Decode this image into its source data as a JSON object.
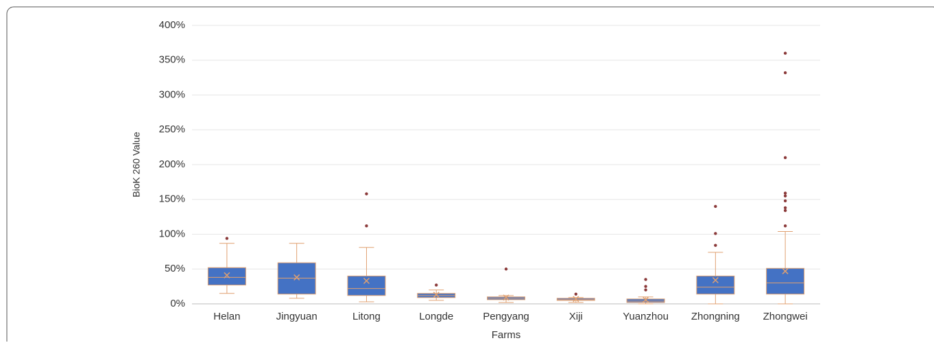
{
  "chart_data": {
    "type": "box",
    "x_label": "Farms",
    "y_label": "BioK 260 Value",
    "categories": [
      "Helan",
      "Jingyuan",
      "Litong",
      "Longde",
      "Pengyang",
      "Xiji",
      "Yuanzhou",
      "Zhongning",
      "Zhongwei"
    ],
    "min": [
      15,
      8,
      3,
      5,
      2,
      2,
      0,
      0,
      0
    ],
    "q1": [
      27,
      14,
      12,
      9,
      6,
      5,
      2,
      14,
      14
    ],
    "median": [
      38,
      37,
      22,
      12,
      8,
      6,
      4,
      24,
      30
    ],
    "q3": [
      52,
      59,
      40,
      15,
      10,
      8,
      7,
      40,
      51
    ],
    "max": [
      87,
      87,
      81,
      20,
      12,
      9,
      10,
      74,
      104
    ],
    "mean": [
      41,
      38,
      33,
      13,
      9,
      7,
      6,
      34,
      47
    ],
    "outliers": [
      [
        94
      ],
      [],
      [
        112,
        158
      ],
      [
        27
      ],
      [
        50
      ],
      [
        14
      ],
      [
        20,
        25,
        35
      ],
      [
        84,
        101,
        140
      ],
      [
        112,
        134,
        138,
        148,
        155,
        159,
        210,
        332,
        360
      ]
    ],
    "box_color": "#4472c4",
    "whisker_color": "#e0a070",
    "outlier_color": "#8b3a3a",
    "ylim": [
      0,
      400
    ],
    "yticks": [
      {
        "value": 0,
        "label": "0%"
      },
      {
        "value": 50,
        "label": "50%"
      },
      {
        "value": 100,
        "label": "100%"
      },
      {
        "value": 150,
        "label": "150%"
      },
      {
        "value": 200,
        "label": "200%"
      },
      {
        "value": 250,
        "label": "250%"
      },
      {
        "value": 300,
        "label": "300%"
      },
      {
        "value": 350,
        "label": "350%"
      },
      {
        "value": 400,
        "label": "400%"
      }
    ],
    "grid": true
  }
}
